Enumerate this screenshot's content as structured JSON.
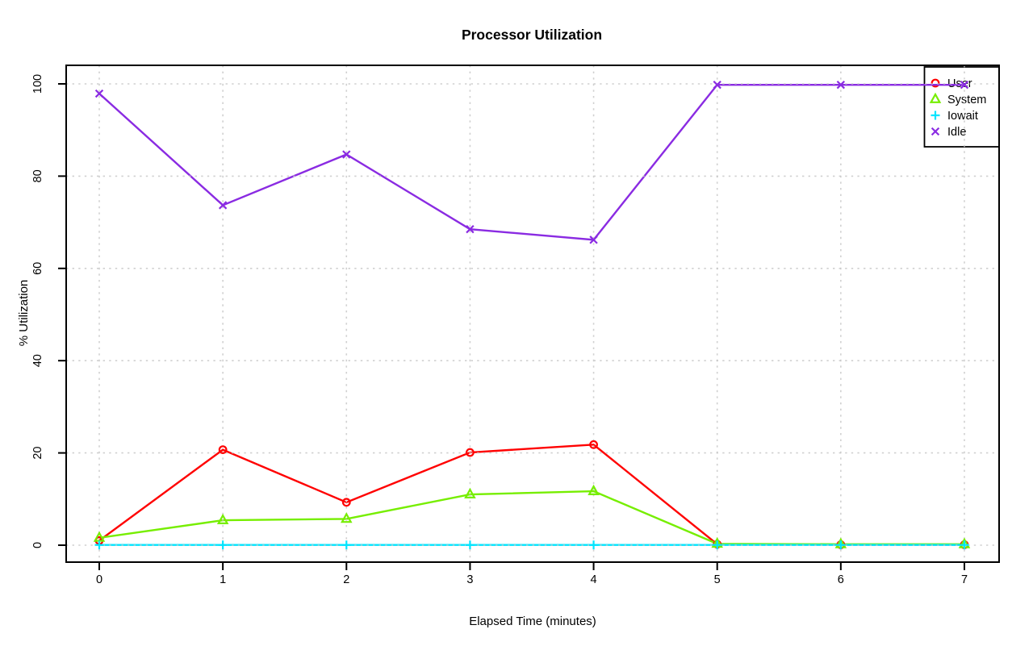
{
  "page": {
    "background": "#FFFFFF"
  },
  "chart_data": {
    "type": "line",
    "title": "Processor Utilization",
    "xlabel": "Elapsed Time (minutes)",
    "ylabel": "% Utilization",
    "x": [
      0,
      1,
      2,
      3,
      4,
      5,
      6,
      7
    ],
    "x_ticks": [
      "0",
      "1",
      "2",
      "3",
      "4",
      "5",
      "6",
      "7"
    ],
    "y_ticks": [
      "0",
      "20",
      "40",
      "60",
      "80",
      "100"
    ],
    "y_tick_values": [
      0,
      20,
      40,
      60,
      80,
      100
    ],
    "xlim": [
      -0.27,
      7.27
    ],
    "ylim": [
      -4,
      104
    ],
    "grid": true,
    "grid_style": "dotted",
    "grid_color": "#C8C8C8",
    "axis_color": "#000000",
    "legend_position": "top-right",
    "series": [
      {
        "name": "User",
        "color": "#FF0000",
        "marker": "circle",
        "values": [
          1.0,
          20.7,
          9.3,
          20.1,
          21.8,
          0.2,
          0.1,
          0.1
        ]
      },
      {
        "name": "System",
        "color": "#76EE00",
        "marker": "triangle",
        "values": [
          1.6,
          5.4,
          5.7,
          11.0,
          11.7,
          0.3,
          0.2,
          0.2
        ]
      },
      {
        "name": "Iowait",
        "color": "#00E5FF",
        "marker": "plus",
        "values": [
          0.05,
          0.05,
          0.05,
          0.05,
          0.05,
          0.05,
          0.05,
          0.05
        ]
      },
      {
        "name": "Idle",
        "color": "#8A2BE2",
        "marker": "x",
        "values": [
          97.9,
          73.7,
          84.7,
          68.5,
          66.2,
          99.8,
          99.8,
          99.8
        ]
      }
    ]
  }
}
